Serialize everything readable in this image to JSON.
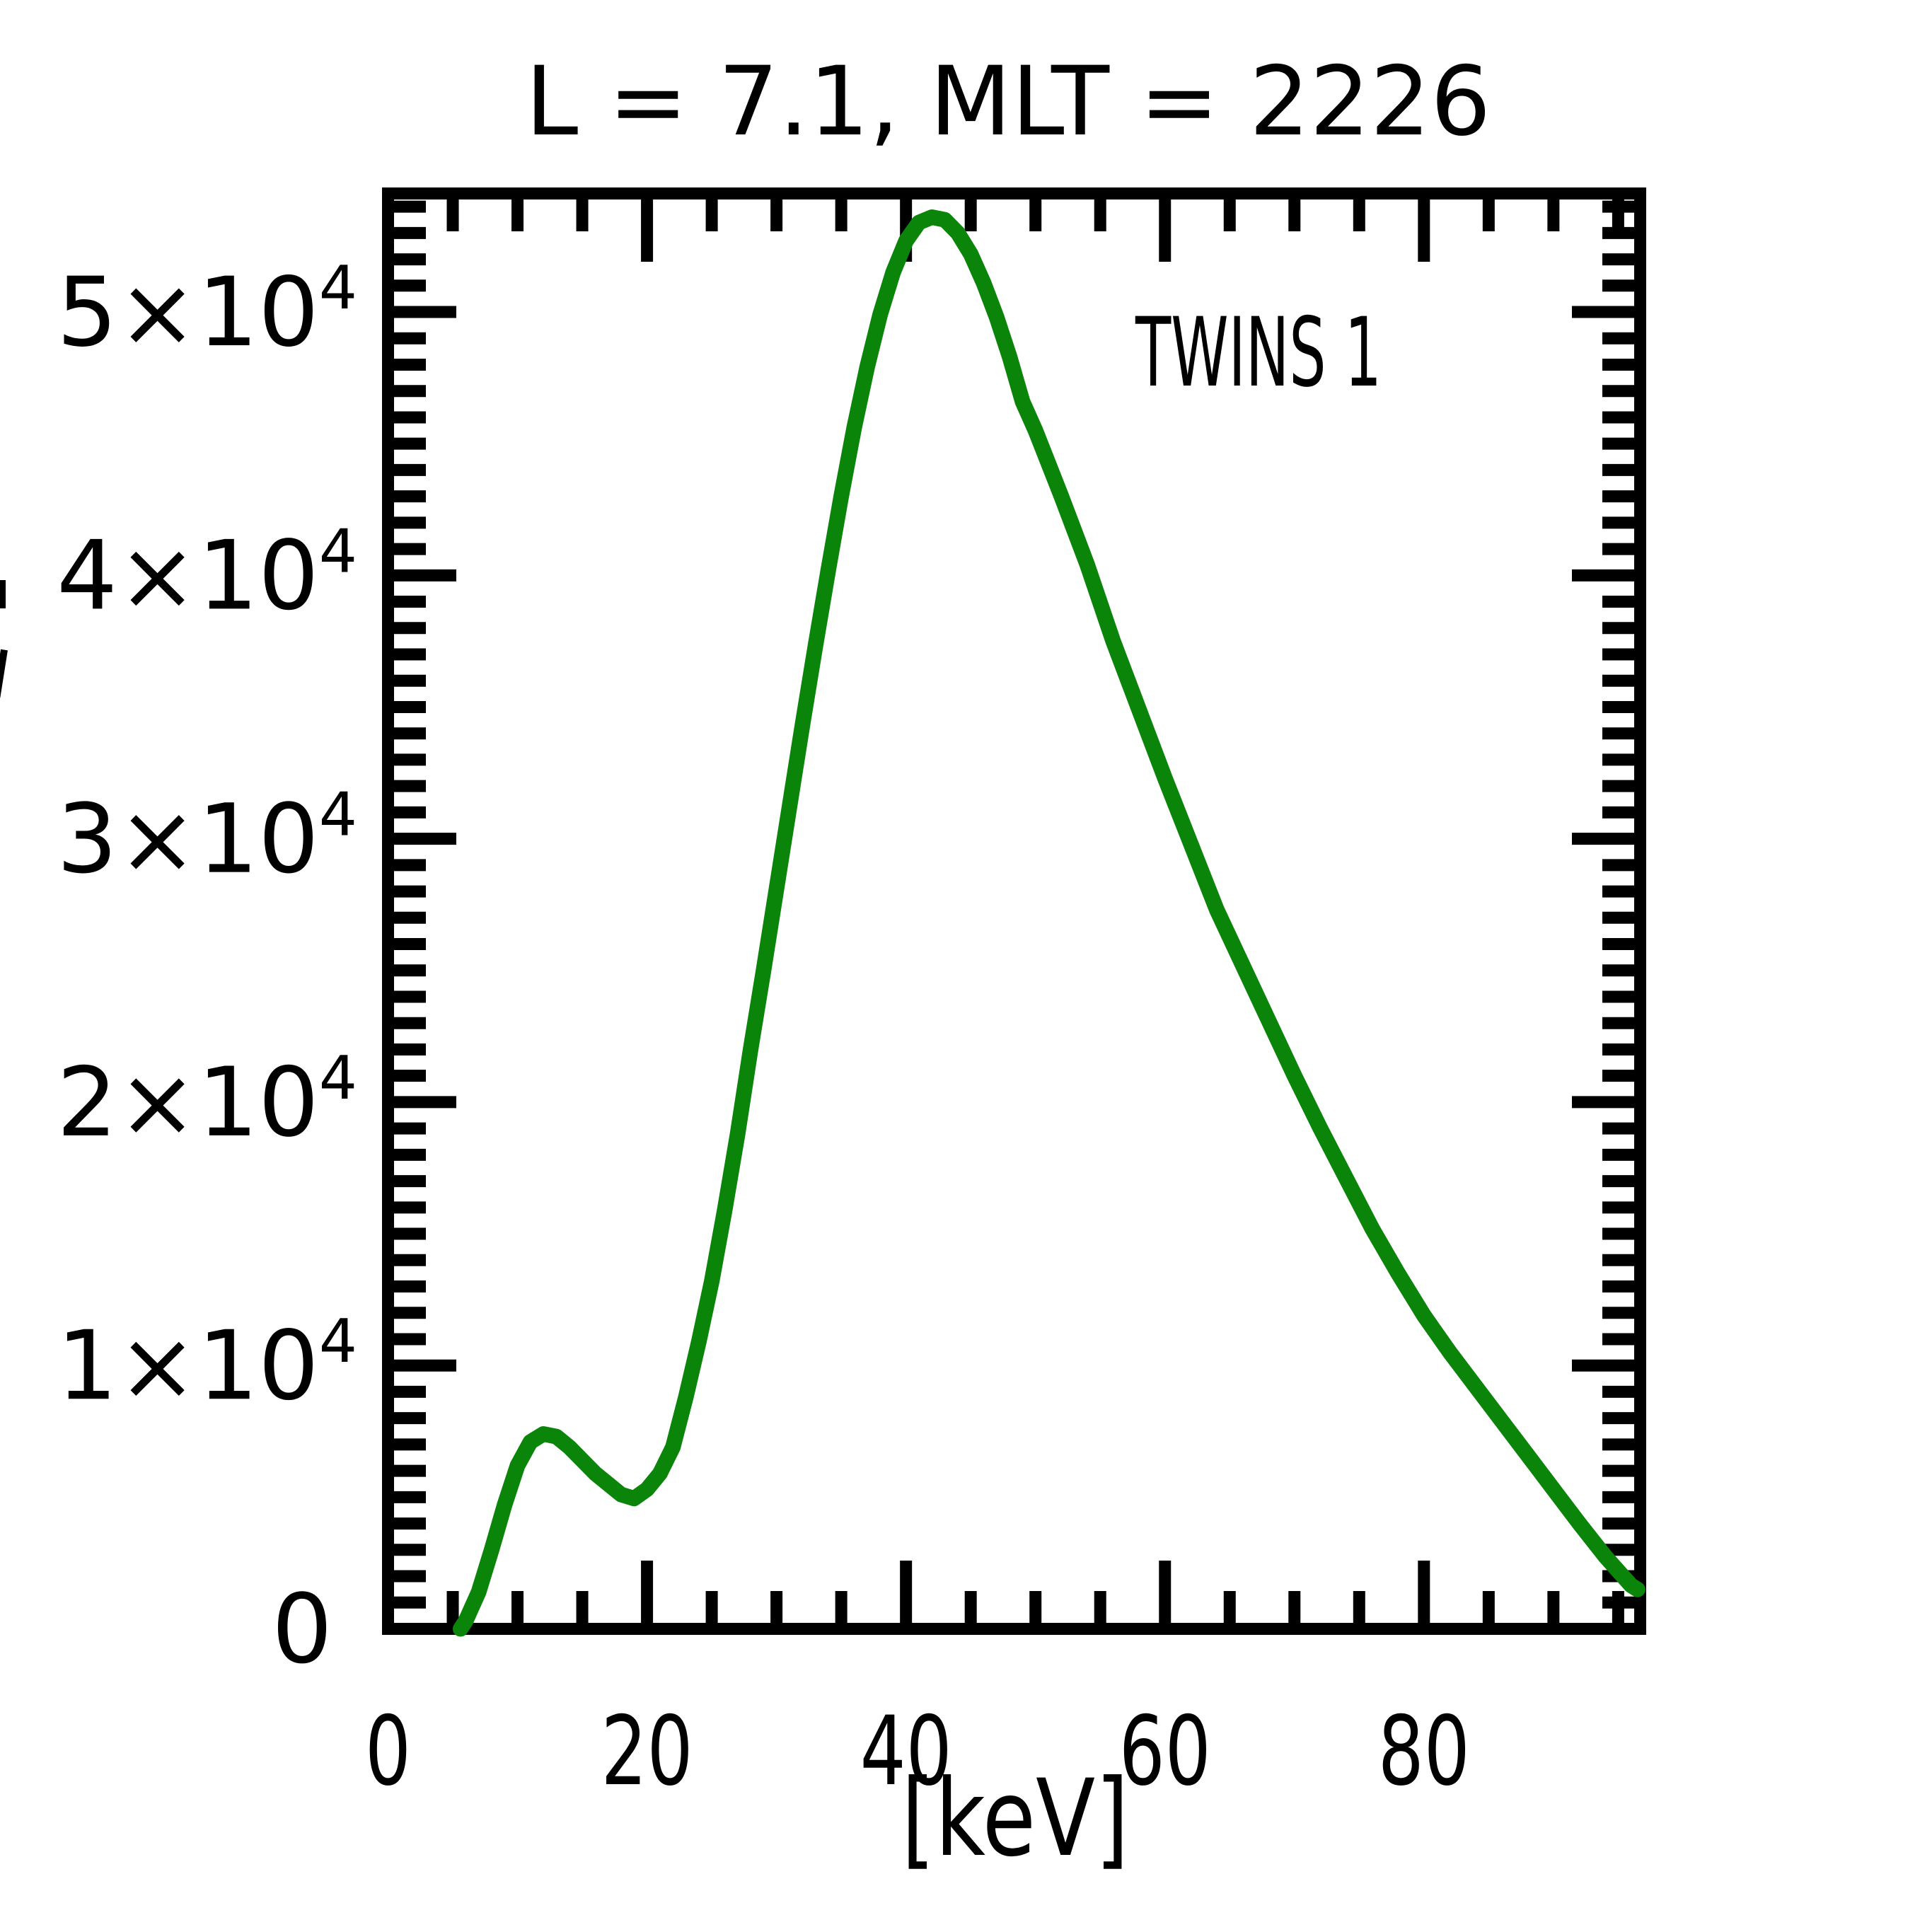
{
  "title": {
    "text": "L =  7.1, MLT = 2226"
  },
  "legend": {
    "label": "TWINS 1",
    "color": "#0a850a",
    "position": "upper right"
  },
  "x_axis": {
    "label": "[keV]",
    "tick_labels": [
      "0",
      "20",
      "40",
      "60",
      "80"
    ]
  },
  "y_axis": {
    "tick_labels": [
      "0",
      "1×10⁴",
      "2×10⁴",
      "3×10⁴",
      "4×10⁴",
      "5×10⁴"
    ]
  },
  "colors": {
    "curve": "#0a850a",
    "frame": "#000000",
    "background": "#ffffff"
  },
  "chart_data": {
    "type": "line",
    "title": "L =  7.1, MLT = 2226",
    "xlabel": "[keV]",
    "ylabel": "",
    "xlim": [
      0,
      96.7
    ],
    "ylim": [
      0,
      54500
    ],
    "grid": false,
    "x_major_ticks": [
      0,
      20,
      40,
      60,
      80
    ],
    "x_tick_labels": [
      "0",
      "20",
      "40",
      "60",
      "80"
    ],
    "x_minor_step": 5,
    "y_major_ticks": [
      0,
      10000,
      20000,
      30000,
      40000,
      50000
    ],
    "y_tick_labels": [
      {
        "main": "0",
        "sup": ""
      },
      {
        "main": "1×10",
        "sup": "4"
      },
      {
        "main": "2×10",
        "sup": "4"
      },
      {
        "main": "3×10",
        "sup": "4"
      },
      {
        "main": "4×10",
        "sup": "4"
      },
      {
        "main": "5×10",
        "sup": "4"
      }
    ],
    "y_minor_step": 1000,
    "legend": {
      "label": "TWINS 1",
      "position": "upper right"
    },
    "series": [
      {
        "name": "TWINS 1",
        "color": "#0a850a",
        "points": [
          [
            5.6,
            0
          ],
          [
            6,
            300
          ],
          [
            7,
            1400
          ],
          [
            8,
            3000
          ],
          [
            9,
            4700
          ],
          [
            10,
            6200
          ],
          [
            11,
            7100
          ],
          [
            12,
            7400
          ],
          [
            13,
            7300
          ],
          [
            14,
            6900
          ],
          [
            15,
            6400
          ],
          [
            16,
            5900
          ],
          [
            17,
            5500
          ],
          [
            18,
            5100
          ],
          [
            19,
            4950
          ],
          [
            20,
            5300
          ],
          [
            21,
            5900
          ],
          [
            22,
            6900
          ],
          [
            23,
            8800
          ],
          [
            24,
            10900
          ],
          [
            25,
            13200
          ],
          [
            26,
            15900
          ],
          [
            27,
            18800
          ],
          [
            28,
            22000
          ],
          [
            29,
            25000
          ],
          [
            30,
            28100
          ],
          [
            31,
            31200
          ],
          [
            32,
            34300
          ],
          [
            33,
            37300
          ],
          [
            34,
            40200
          ],
          [
            35,
            43000
          ],
          [
            36,
            45600
          ],
          [
            37,
            47900
          ],
          [
            38,
            49900
          ],
          [
            39,
            51500
          ],
          [
            40,
            52700
          ],
          [
            41,
            53400
          ],
          [
            42,
            53600
          ],
          [
            43,
            53500
          ],
          [
            44,
            53000
          ],
          [
            45,
            52200
          ],
          [
            46,
            51100
          ],
          [
            47,
            49800
          ],
          [
            48,
            48300
          ],
          [
            49,
            46600
          ],
          [
            50,
            45500
          ],
          [
            52,
            43000
          ],
          [
            54,
            40400
          ],
          [
            56,
            37500
          ],
          [
            58,
            34900
          ],
          [
            60,
            32300
          ],
          [
            62,
            29800
          ],
          [
            64,
            27300
          ],
          [
            66,
            25200
          ],
          [
            68,
            23100
          ],
          [
            70,
            21000
          ],
          [
            72,
            19000
          ],
          [
            74,
            17100
          ],
          [
            76,
            15200
          ],
          [
            78,
            13500
          ],
          [
            80,
            11900
          ],
          [
            82,
            10500
          ],
          [
            84,
            9200
          ],
          [
            86,
            7900
          ],
          [
            88,
            6600
          ],
          [
            90,
            5300
          ],
          [
            92,
            4000
          ],
          [
            94,
            2750
          ],
          [
            96,
            1650
          ],
          [
            96.5,
            1500
          ]
        ]
      }
    ]
  }
}
